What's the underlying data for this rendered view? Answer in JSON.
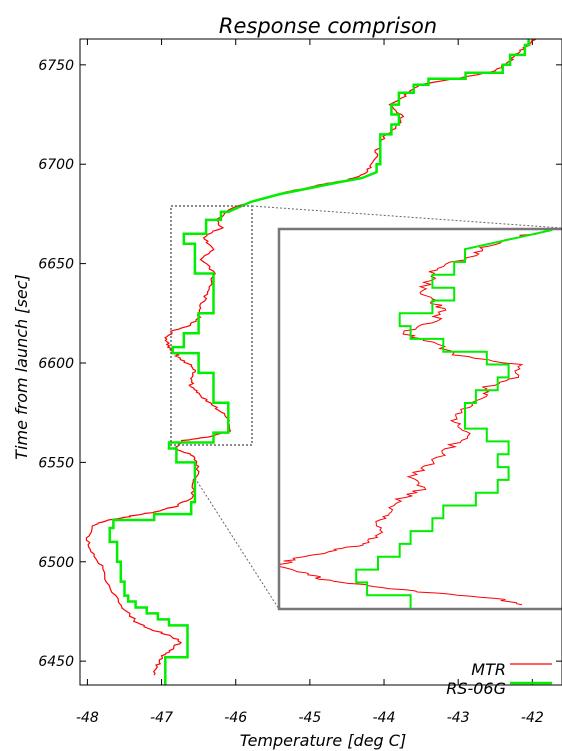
{
  "chart_data": {
    "type": "line",
    "title": "Response comprison",
    "xlabel": "Temperature [deg C]",
    "ylabel": "Time from launch [sec]",
    "xlim": [
      -48.1,
      -41.6
    ],
    "ylim": [
      6438,
      6763
    ],
    "x_ticks": [
      -48,
      -47,
      -46,
      -45,
      -44,
      -43,
      -42
    ],
    "y_ticks": [
      6450,
      6500,
      6550,
      6600,
      6650,
      6700,
      6750
    ],
    "grid": false,
    "legend_position": "bottom-right",
    "series": [
      {
        "name": "MTR",
        "color": "#ff0000",
        "points": [
          [
            -47.1,
            6443
          ],
          [
            -47.05,
            6448
          ],
          [
            -47.0,
            6452
          ],
          [
            -46.85,
            6456
          ],
          [
            -46.75,
            6460
          ],
          [
            -46.9,
            6463
          ],
          [
            -47.15,
            6466
          ],
          [
            -47.35,
            6470
          ],
          [
            -47.55,
            6478
          ],
          [
            -47.7,
            6488
          ],
          [
            -47.82,
            6498
          ],
          [
            -47.95,
            6505
          ],
          [
            -48.0,
            6512
          ],
          [
            -47.95,
            6518
          ],
          [
            -47.7,
            6521
          ],
          [
            -47.4,
            6523
          ],
          [
            -47.1,
            6525
          ],
          [
            -46.8,
            6528
          ],
          [
            -46.6,
            6532
          ],
          [
            -46.55,
            6540
          ],
          [
            -46.5,
            6548
          ],
          [
            -46.55,
            6553
          ],
          [
            -46.8,
            6557
          ],
          [
            -46.7,
            6561
          ],
          [
            -46.35,
            6563
          ],
          [
            -46.05,
            6566
          ],
          [
            -46.1,
            6572
          ],
          [
            -46.25,
            6577
          ],
          [
            -46.4,
            6581
          ],
          [
            -46.5,
            6584
          ],
          [
            -46.6,
            6588
          ],
          [
            -46.6,
            6593
          ],
          [
            -46.55,
            6597
          ],
          [
            -46.7,
            6601
          ],
          [
            -46.8,
            6604
          ],
          [
            -46.9,
            6608
          ],
          [
            -46.95,
            6612
          ],
          [
            -46.85,
            6616
          ],
          [
            -46.6,
            6619
          ],
          [
            -46.5,
            6623
          ],
          [
            -46.45,
            6630
          ],
          [
            -46.35,
            6637
          ],
          [
            -46.3,
            6645
          ],
          [
            -46.45,
            6652
          ],
          [
            -46.3,
            6658
          ],
          [
            -46.45,
            6663
          ],
          [
            -46.2,
            6668
          ],
          [
            -46.25,
            6672
          ],
          [
            -46.1,
            6677
          ],
          [
            -45.8,
            6681
          ],
          [
            -45.5,
            6684
          ],
          [
            -45.2,
            6687
          ],
          [
            -44.8,
            6690
          ],
          [
            -44.5,
            6692
          ],
          [
            -44.25,
            6695
          ],
          [
            -44.15,
            6700
          ],
          [
            -44.1,
            6706
          ],
          [
            -44.05,
            6712
          ],
          [
            -43.85,
            6718
          ],
          [
            -43.75,
            6724
          ],
          [
            -43.9,
            6730
          ],
          [
            -43.7,
            6735
          ],
          [
            -43.5,
            6740
          ],
          [
            -42.9,
            6744
          ],
          [
            -42.5,
            6747
          ],
          [
            -42.3,
            6752
          ],
          [
            -42.2,
            6756
          ],
          [
            -42.05,
            6760
          ],
          [
            -41.95,
            6763
          ]
        ]
      },
      {
        "name": "RS-06G",
        "color": "#00ee00",
        "points": [
          [
            -46.95,
            6438
          ],
          [
            -46.95,
            6452
          ],
          [
            -46.65,
            6452
          ],
          [
            -46.65,
            6468
          ],
          [
            -46.9,
            6468
          ],
          [
            -46.9,
            6471
          ],
          [
            -47.05,
            6471
          ],
          [
            -47.05,
            6474
          ],
          [
            -47.2,
            6474
          ],
          [
            -47.2,
            6477
          ],
          [
            -47.35,
            6477
          ],
          [
            -47.35,
            6480
          ],
          [
            -47.45,
            6480
          ],
          [
            -47.45,
            6483
          ],
          [
            -47.5,
            6483
          ],
          [
            -47.5,
            6490
          ],
          [
            -47.55,
            6490
          ],
          [
            -47.55,
            6500
          ],
          [
            -47.6,
            6500
          ],
          [
            -47.6,
            6510
          ],
          [
            -47.7,
            6510
          ],
          [
            -47.7,
            6517
          ],
          [
            -47.65,
            6517
          ],
          [
            -47.65,
            6521
          ],
          [
            -47.1,
            6521
          ],
          [
            -47.1,
            6524
          ],
          [
            -46.6,
            6524
          ],
          [
            -46.6,
            6530
          ],
          [
            -46.55,
            6530
          ],
          [
            -46.55,
            6550
          ],
          [
            -46.8,
            6550
          ],
          [
            -46.8,
            6557
          ],
          [
            -46.9,
            6557
          ],
          [
            -46.9,
            6560
          ],
          [
            -46.3,
            6560
          ],
          [
            -46.3,
            6565
          ],
          [
            -46.1,
            6565
          ],
          [
            -46.1,
            6580
          ],
          [
            -46.3,
            6580
          ],
          [
            -46.3,
            6595
          ],
          [
            -46.5,
            6595
          ],
          [
            -46.5,
            6605
          ],
          [
            -46.85,
            6605
          ],
          [
            -46.85,
            6608
          ],
          [
            -46.7,
            6608
          ],
          [
            -46.7,
            6615
          ],
          [
            -46.5,
            6615
          ],
          [
            -46.5,
            6625
          ],
          [
            -46.3,
            6625
          ],
          [
            -46.3,
            6645
          ],
          [
            -46.55,
            6645
          ],
          [
            -46.55,
            6660
          ],
          [
            -46.7,
            6660
          ],
          [
            -46.7,
            6665
          ],
          [
            -46.4,
            6665
          ],
          [
            -46.4,
            6672
          ],
          [
            -46.2,
            6672
          ],
          [
            -46.2,
            6676
          ],
          [
            -46.1,
            6676
          ],
          [
            -45.8,
            6681
          ],
          [
            -45.4,
            6685
          ],
          [
            -45.0,
            6688
          ],
          [
            -44.6,
            6691
          ],
          [
            -44.3,
            6693
          ],
          [
            -44.1,
            6696
          ],
          [
            -44.1,
            6700
          ],
          [
            -44.05,
            6700
          ],
          [
            -44.05,
            6715
          ],
          [
            -43.9,
            6715
          ],
          [
            -43.9,
            6720
          ],
          [
            -43.8,
            6720
          ],
          [
            -43.8,
            6725
          ],
          [
            -43.9,
            6725
          ],
          [
            -43.9,
            6730
          ],
          [
            -43.8,
            6730
          ],
          [
            -43.8,
            6736
          ],
          [
            -43.6,
            6736
          ],
          [
            -43.6,
            6740
          ],
          [
            -43.4,
            6740
          ],
          [
            -43.4,
            6743
          ],
          [
            -42.9,
            6743
          ],
          [
            -42.9,
            6746
          ],
          [
            -42.4,
            6746
          ],
          [
            -42.4,
            6750
          ],
          [
            -42.3,
            6750
          ],
          [
            -42.3,
            6755
          ],
          [
            -42.1,
            6755
          ],
          [
            -42.1,
            6760
          ],
          [
            -42.05,
            6760
          ],
          [
            -42.05,
            6763
          ]
        ]
      }
    ],
    "inset": {
      "xlim": [
        -47.0,
        -45.7
      ],
      "ylim": [
        6562,
        6680
      ],
      "mtr_points": [
        [
          -45.9,
          6563
        ],
        [
          -46.0,
          6565
        ],
        [
          -46.35,
          6567
        ],
        [
          -46.6,
          6569
        ],
        [
          -46.8,
          6571
        ],
        [
          -46.9,
          6573
        ],
        [
          -47.0,
          6575
        ],
        [
          -46.95,
          6577
        ],
        [
          -46.75,
          6580
        ],
        [
          -46.6,
          6582
        ],
        [
          -46.55,
          6585
        ],
        [
          -46.55,
          6589
        ],
        [
          -46.5,
          6592
        ],
        [
          -46.45,
          6596
        ],
        [
          -46.35,
          6599
        ],
        [
          -46.4,
          6603
        ],
        [
          -46.3,
          6607
        ],
        [
          -46.25,
          6611
        ],
        [
          -46.15,
          6615
        ],
        [
          -46.15,
          6618
        ],
        [
          -46.2,
          6621
        ],
        [
          -46.15,
          6624
        ],
        [
          -46.05,
          6628
        ],
        [
          -46.05,
          6631
        ],
        [
          -45.9,
          6634
        ],
        [
          -45.9,
          6638
        ],
        [
          -46.2,
          6641
        ],
        [
          -46.3,
          6645
        ],
        [
          -46.45,
          6648
        ],
        [
          -46.3,
          6651
        ],
        [
          -46.25,
          6655
        ],
        [
          -46.3,
          6658
        ],
        [
          -46.35,
          6661
        ],
        [
          -46.3,
          6665
        ],
        [
          -46.3,
          6668
        ],
        [
          -46.1,
          6672
        ],
        [
          -46.05,
          6675
        ],
        [
          -45.9,
          6678
        ],
        [
          -45.75,
          6680
        ]
      ],
      "rs_points": [
        [
          -46.4,
          6562
        ],
        [
          -46.4,
          6566
        ],
        [
          -46.6,
          6566
        ],
        [
          -46.6,
          6570
        ],
        [
          -46.65,
          6570
        ],
        [
          -46.65,
          6574
        ],
        [
          -46.55,
          6574
        ],
        [
          -46.55,
          6578
        ],
        [
          -46.45,
          6578
        ],
        [
          -46.45,
          6582
        ],
        [
          -46.4,
          6582
        ],
        [
          -46.4,
          6586
        ],
        [
          -46.3,
          6586
        ],
        [
          -46.3,
          6590
        ],
        [
          -46.25,
          6590
        ],
        [
          -46.25,
          6594
        ],
        [
          -46.1,
          6594
        ],
        [
          -46.1,
          6598
        ],
        [
          -46.0,
          6598
        ],
        [
          -46.0,
          6602
        ],
        [
          -45.95,
          6602
        ],
        [
          -45.95,
          6606
        ],
        [
          -46.0,
          6606
        ],
        [
          -46.0,
          6610
        ],
        [
          -45.95,
          6610
        ],
        [
          -45.95,
          6614
        ],
        [
          -46.05,
          6614
        ],
        [
          -46.05,
          6618
        ],
        [
          -46.15,
          6618
        ],
        [
          -46.15,
          6622
        ],
        [
          -46.15,
          6626
        ],
        [
          -46.1,
          6626
        ],
        [
          -46.1,
          6630
        ],
        [
          -46.0,
          6630
        ],
        [
          -46.0,
          6634
        ],
        [
          -45.95,
          6634
        ],
        [
          -45.95,
          6638
        ],
        [
          -46.05,
          6638
        ],
        [
          -46.05,
          6642
        ],
        [
          -46.25,
          6642
        ],
        [
          -46.25,
          6646
        ],
        [
          -46.4,
          6646
        ],
        [
          -46.4,
          6650
        ],
        [
          -46.45,
          6650
        ],
        [
          -46.45,
          6654
        ],
        [
          -46.3,
          6654
        ],
        [
          -46.3,
          6658
        ],
        [
          -46.2,
          6658
        ],
        [
          -46.2,
          6662
        ],
        [
          -46.3,
          6662
        ],
        [
          -46.3,
          6666
        ],
        [
          -46.2,
          6666
        ],
        [
          -46.2,
          6670
        ],
        [
          -46.15,
          6670
        ],
        [
          -46.15,
          6674
        ],
        [
          -45.75,
          6680
        ]
      ]
    }
  }
}
